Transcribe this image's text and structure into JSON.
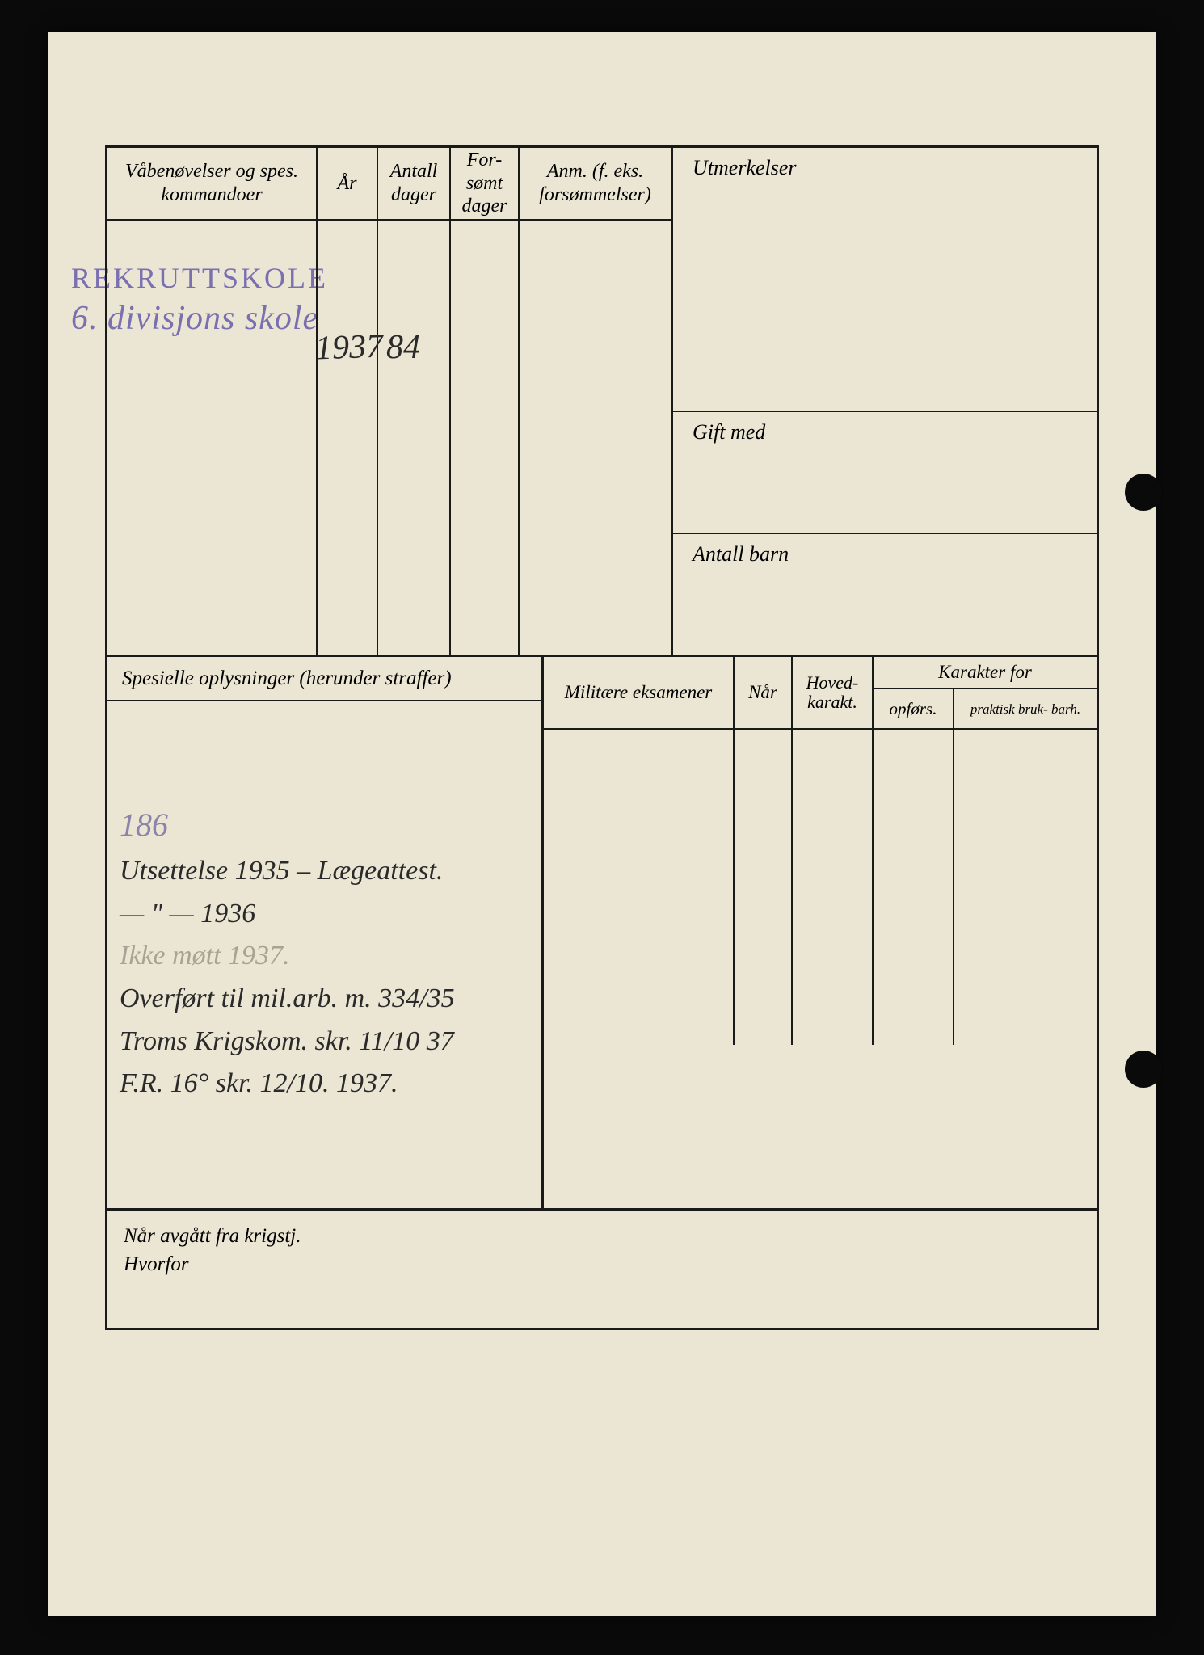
{
  "page": {
    "background_color": "#ebe6d4",
    "border_color": "#1a1a1a",
    "outer_background": "#0a0a0a"
  },
  "headers": {
    "exercises": "Våbenøvelser og spes. kommandoer",
    "year": "År",
    "days": "Antall dager",
    "missed_days": "For- sømt dager",
    "remarks": "Anm. (f. eks. forsømmelser)",
    "distinctions": "Utmerkelser",
    "married_to": "Gift med",
    "children": "Antall barn",
    "special_info": "Spesielle oplysninger (herunder straffer)",
    "military_exams": "Militære eksamener",
    "when": "Når",
    "main_grade": "Hoved- karakt.",
    "grade_for": "Karakter for",
    "conduct": "opførs.",
    "practical": "praktisk bruk- barh.",
    "departed_label": "Når avgått fra krigstj.",
    "why_label": "Hvorfor"
  },
  "stamp": {
    "line1": "REKRUTTSKOLE",
    "line2": "6. divisjons skole",
    "color": "#7a6fb0"
  },
  "handwriting": {
    "year": "1937",
    "days": "84",
    "note_186": "186",
    "note_line1": "Utsettelse 1935 – Lægeattest.",
    "note_line2": "—  \"  —   1936",
    "note_line3": "Ikke møtt  1937.",
    "note_line4": "Overført til mil.arb. m. 334/35",
    "note_line5": "Troms Krigskom. skr. 11/10 37",
    "note_line6": "F.R. 16° skr. 12/10. 1937."
  }
}
